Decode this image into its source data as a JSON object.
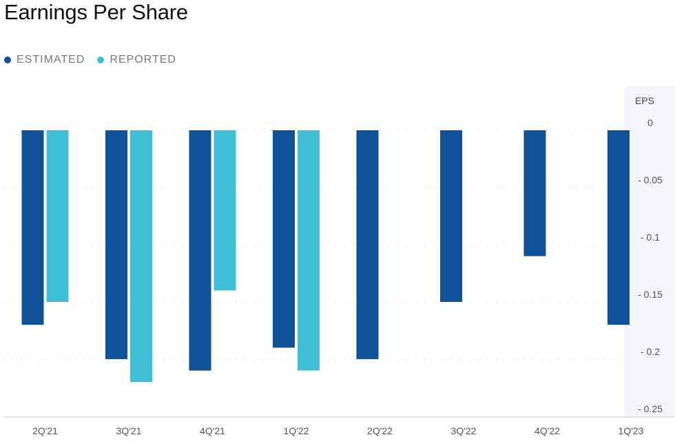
{
  "header": {
    "title": "Earnings Per Share"
  },
  "legend": [
    {
      "label": "ESTIMATED",
      "color": "#0f5299"
    },
    {
      "label": "REPORTED",
      "color": "#3ebfd5"
    }
  ],
  "chart_data": {
    "type": "bar",
    "title": "Earnings Per Share",
    "ylabel": "EPS",
    "categories": [
      "2Q'21",
      "3Q'21",
      "4Q'21",
      "1Q'22",
      "2Q'22",
      "3Q'22",
      "4Q'22",
      "1Q'23"
    ],
    "series": [
      {
        "name": "ESTIMATED",
        "color": "#0f5299",
        "values": [
          -0.17,
          -0.2,
          -0.21,
          -0.19,
          -0.2,
          -0.15,
          -0.11,
          -0.17
        ]
      },
      {
        "name": "REPORTED",
        "color": "#3ebfd5",
        "values": [
          -0.15,
          -0.22,
          -0.14,
          -0.21,
          null,
          null,
          null,
          null
        ]
      }
    ],
    "yticks": [
      0,
      -0.05,
      -0.1,
      -0.15,
      -0.2,
      -0.25
    ],
    "ytick_labels": [
      "0",
      "- 0.05",
      "- 0.1",
      "- 0.15",
      "- 0.2",
      "- 0.25"
    ],
    "ylim": [
      -0.25,
      0
    ],
    "grid": true,
    "legend_position": "top-left"
  }
}
